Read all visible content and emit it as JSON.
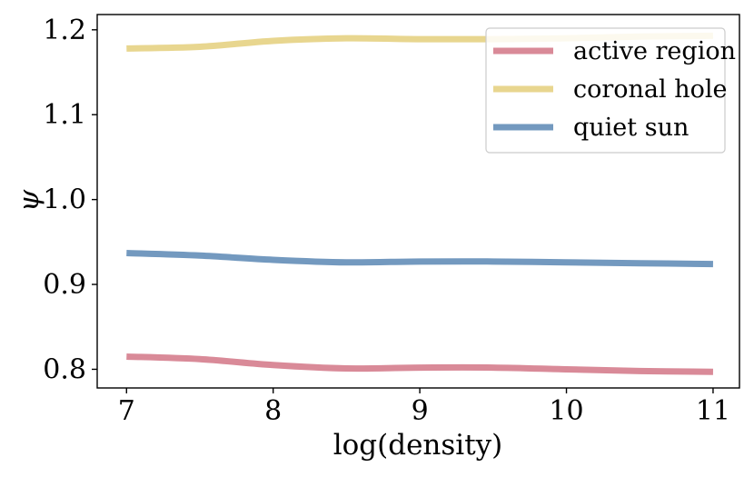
{
  "chart_data": {
    "type": "line",
    "title": "",
    "xlabel": "log(density)",
    "ylabel": "ψ",
    "xlim": [
      6.8,
      11.18
    ],
    "ylim": [
      0.778,
      1.218
    ],
    "xticks": [
      7,
      8,
      9,
      10,
      11
    ],
    "xtick_labels": [
      "7",
      "8",
      "9",
      "10",
      "11"
    ],
    "yticks": [
      0.8,
      0.9,
      1.0,
      1.1,
      1.2
    ],
    "ytick_labels": [
      "0.8",
      "0.9",
      "1.0",
      "1.1",
      "1.2"
    ],
    "legend_position": "top-right",
    "series": [
      {
        "name": "active region",
        "color": "#d98a98",
        "x": [
          7.0,
          7.5,
          8.0,
          8.5,
          9.0,
          9.5,
          10.0,
          10.5,
          11.0
        ],
        "y": [
          0.815,
          0.812,
          0.805,
          0.801,
          0.802,
          0.802,
          0.8,
          0.798,
          0.797
        ]
      },
      {
        "name": "coronal hole",
        "color": "#e8d68f",
        "x": [
          7.0,
          7.5,
          8.0,
          8.5,
          9.0,
          9.5,
          10.0,
          10.5,
          11.0
        ],
        "y": [
          1.178,
          1.18,
          1.187,
          1.19,
          1.189,
          1.189,
          1.19,
          1.192,
          1.193
        ]
      },
      {
        "name": "quiet sun",
        "color": "#7399bf",
        "x": [
          7.0,
          7.5,
          8.0,
          8.5,
          9.0,
          9.5,
          10.0,
          10.5,
          11.0
        ],
        "y": [
          0.937,
          0.934,
          0.929,
          0.926,
          0.927,
          0.927,
          0.926,
          0.925,
          0.924
        ]
      }
    ]
  }
}
